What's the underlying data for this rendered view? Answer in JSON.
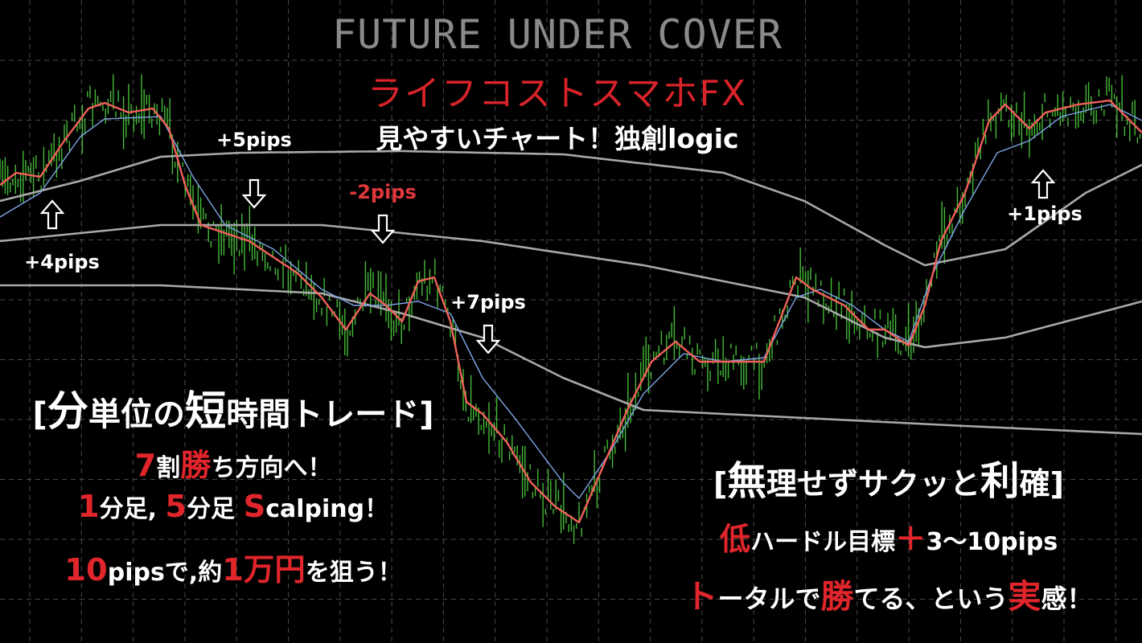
{
  "header": {
    "title": "FUTURE UNDER COVER",
    "subtitle": "ライフコストスマホFX",
    "tagline": "見やすいチャート！独創logic"
  },
  "left_block": [
    [
      {
        "text": "[",
        "style": "white"
      },
      {
        "text": "分",
        "style": "big"
      },
      {
        "text": "単位の",
        "style": "white"
      },
      {
        "text": "短",
        "style": "big"
      },
      {
        "text": "時間トレード]",
        "style": "white"
      }
    ],
    [
      {
        "text": "7",
        "style": "red-big"
      },
      {
        "text": "割",
        "style": "white"
      },
      {
        "text": "勝",
        "style": "red-big"
      },
      {
        "text": "ち方向へ！",
        "style": "white"
      }
    ],
    [
      {
        "text": "1",
        "style": "red-big"
      },
      {
        "text": "分足, ",
        "style": "white"
      },
      {
        "text": "5",
        "style": "red-big"
      },
      {
        "text": "分足 ",
        "style": "white"
      },
      {
        "text": "S",
        "style": "red-big"
      },
      {
        "text": "calping！",
        "style": "white"
      }
    ],
    [
      {
        "text": "10",
        "style": "red-big"
      },
      {
        "text": "pipsで,約",
        "style": "white"
      },
      {
        "text": "1万円",
        "style": "red-big"
      },
      {
        "text": "を狙う！",
        "style": "white"
      }
    ]
  ],
  "right_block": [
    [
      {
        "text": "[",
        "style": "white"
      },
      {
        "text": "無",
        "style": "big"
      },
      {
        "text": "理せずサクッと",
        "style": "white"
      },
      {
        "text": "利",
        "style": "big"
      },
      {
        "text": "確]",
        "style": "white"
      }
    ],
    [
      {
        "text": "低",
        "style": "red-big"
      },
      {
        "text": "ハードル目標",
        "style": "white"
      },
      {
        "text": "＋",
        "style": "red-big"
      },
      {
        "text": "3〜10pips",
        "style": "white"
      }
    ],
    [
      {
        "text": "ト",
        "style": "red-big"
      },
      {
        "text": "ータルで",
        "style": "white"
      },
      {
        "text": "勝",
        "style": "red-big"
      },
      {
        "text": "てる、という",
        "style": "white"
      },
      {
        "text": "実",
        "style": "red-big"
      },
      {
        "text": "感！",
        "style": "white"
      }
    ]
  ],
  "annotations": [
    {
      "label": "+4pips",
      "direction": "up",
      "bar": 6.5,
      "negative": false
    },
    {
      "label": "+5pips",
      "direction": "down",
      "bar": 31.6,
      "negative": false
    },
    {
      "label": "-2pips",
      "direction": "down",
      "bar": 47.6,
      "negative": true
    },
    {
      "label": "+7pips",
      "direction": "down",
      "bar": 60.7,
      "negative": false
    },
    {
      "label": "+1pips",
      "direction": "up",
      "bar": 129.7,
      "negative": false
    }
  ],
  "colors": {
    "background": "#000000",
    "candles": "#4ccf3c",
    "fast_ma": "#f0605a",
    "slow_ma": "#7fa6e8",
    "bands": "#a8a8a8",
    "grid": "#4a4a4a",
    "accent_red": "#e0252b"
  },
  "chart_data": {
    "type": "line",
    "grid": true,
    "xlim": [
      0,
      142
    ],
    "ylim": [
      0,
      800
    ],
    "series": [
      {
        "key": "fast_ma",
        "points": [
          [
            0,
            570
          ],
          [
            2,
            585
          ],
          [
            5,
            580
          ],
          [
            8,
            625
          ],
          [
            11,
            665
          ],
          [
            13,
            672
          ],
          [
            16,
            660
          ],
          [
            19,
            665
          ],
          [
            21,
            640
          ],
          [
            23,
            570
          ],
          [
            25,
            520
          ],
          [
            28,
            510
          ],
          [
            31,
            500
          ],
          [
            34,
            480
          ],
          [
            37,
            460
          ],
          [
            40,
            430
          ],
          [
            43,
            390
          ],
          [
            46,
            435
          ],
          [
            48,
            420
          ],
          [
            50,
            400
          ],
          [
            52,
            450
          ],
          [
            54,
            455
          ],
          [
            56,
            400
          ],
          [
            58,
            300
          ],
          [
            60,
            285
          ],
          [
            63,
            250
          ],
          [
            66,
            200
          ],
          [
            69,
            170
          ],
          [
            72,
            150
          ],
          [
            75,
            220
          ],
          [
            78,
            290
          ],
          [
            81,
            350
          ],
          [
            84,
            375
          ],
          [
            87,
            350
          ],
          [
            90,
            350
          ],
          [
            95,
            350
          ],
          [
            99,
            455
          ],
          [
            101,
            440
          ],
          [
            105,
            420
          ],
          [
            108,
            390
          ],
          [
            110,
            390
          ],
          [
            113,
            370
          ],
          [
            115,
            420
          ],
          [
            117,
            500
          ],
          [
            120,
            560
          ],
          [
            123,
            650
          ],
          [
            125,
            670
          ],
          [
            128,
            640
          ],
          [
            130,
            660
          ],
          [
            134,
            670
          ],
          [
            138,
            675
          ],
          [
            142,
            635
          ]
        ]
      },
      {
        "key": "slow_ma",
        "points": [
          [
            0,
            530
          ],
          [
            5,
            560
          ],
          [
            10,
            630
          ],
          [
            13,
            652
          ],
          [
            20,
            655
          ],
          [
            24,
            580
          ],
          [
            28,
            520
          ],
          [
            34,
            490
          ],
          [
            40,
            440
          ],
          [
            44,
            420
          ],
          [
            48,
            420
          ],
          [
            52,
            425
          ],
          [
            56,
            410
          ],
          [
            60,
            330
          ],
          [
            64,
            280
          ],
          [
            70,
            200
          ],
          [
            72,
            180
          ],
          [
            76,
            240
          ],
          [
            80,
            310
          ],
          [
            85,
            360
          ],
          [
            90,
            350
          ],
          [
            95,
            355
          ],
          [
            99,
            430
          ],
          [
            102,
            440
          ],
          [
            106,
            420
          ],
          [
            110,
            390
          ],
          [
            113,
            375
          ],
          [
            116,
            460
          ],
          [
            120,
            540
          ],
          [
            124,
            610
          ],
          [
            128,
            625
          ],
          [
            132,
            655
          ],
          [
            138,
            670
          ],
          [
            142,
            650
          ]
        ]
      },
      {
        "key": "band_upper",
        "points": [
          [
            0,
            550
          ],
          [
            10,
            575
          ],
          [
            20,
            605
          ],
          [
            30,
            610
          ],
          [
            50,
            612
          ],
          [
            70,
            608
          ],
          [
            90,
            585
          ],
          [
            100,
            550
          ],
          [
            110,
            495
          ],
          [
            115,
            470
          ],
          [
            125,
            490
          ],
          [
            135,
            560
          ],
          [
            142,
            595
          ]
        ]
      },
      {
        "key": "band_middle",
        "points": [
          [
            0,
            500
          ],
          [
            20,
            520
          ],
          [
            40,
            520
          ],
          [
            60,
            500
          ],
          [
            80,
            470
          ],
          [
            100,
            430
          ],
          [
            110,
            380
          ],
          [
            115,
            368
          ],
          [
            125,
            380
          ],
          [
            142,
            425
          ]
        ]
      },
      {
        "key": "band_lower",
        "points": [
          [
            0,
            445
          ],
          [
            20,
            445
          ],
          [
            40,
            435
          ],
          [
            50,
            410
          ],
          [
            60,
            380
          ],
          [
            70,
            330
          ],
          [
            80,
            290
          ],
          [
            100,
            280
          ],
          [
            120,
            270
          ],
          [
            142,
            260
          ]
        ]
      }
    ]
  }
}
